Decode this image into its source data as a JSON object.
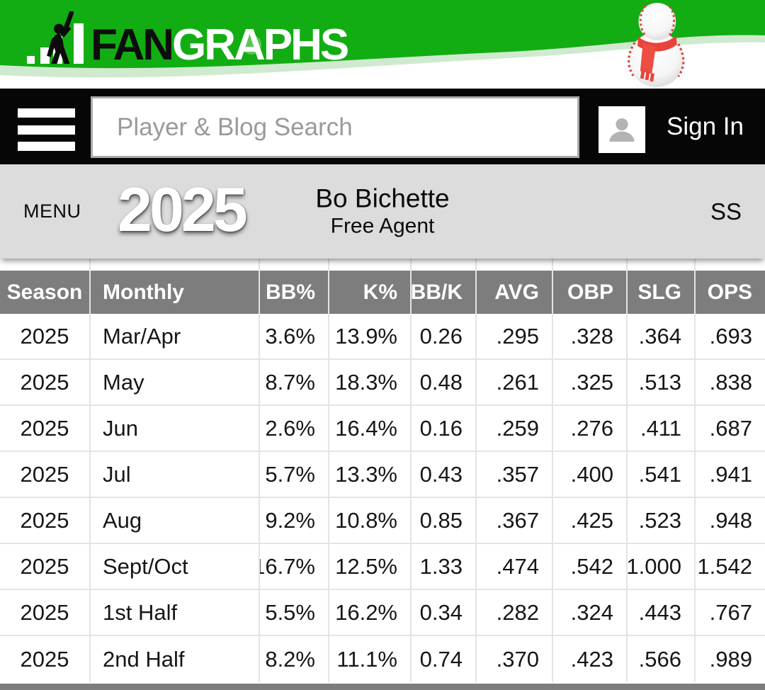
{
  "brand": {
    "logo_fan": "FAN",
    "logo_graphs": "GRAPHS",
    "green": "#12ad12",
    "holiday_icon": "baseball-snowman",
    "scarf_red": "#e8423a"
  },
  "navbar": {
    "search": {
      "placeholder": "Player & Blog Search",
      "value": ""
    },
    "sign_in_label": "Sign In"
  },
  "player_bar": {
    "menu_label": "MENU",
    "year": "2025",
    "name": "Bo Bichette",
    "status": "Free Agent",
    "position": "SS",
    "bar_gray": "#dcdcdc"
  },
  "stats_table": {
    "header_gray": "#7d7d7d",
    "border_gray": "#e4e4e4",
    "columns": [
      "Season",
      "Monthly",
      "BB%",
      "K%",
      "BB/K",
      "AVG",
      "OBP",
      "SLG",
      "OPS"
    ],
    "rows": [
      [
        "2025",
        "Mar/Apr",
        "3.6%",
        "13.9%",
        "0.26",
        ".295",
        ".328",
        ".364",
        ".693"
      ],
      [
        "2025",
        "May",
        "8.7%",
        "18.3%",
        "0.48",
        ".261",
        ".325",
        ".513",
        ".838"
      ],
      [
        "2025",
        "Jun",
        "2.6%",
        "16.4%",
        "0.16",
        ".259",
        ".276",
        ".411",
        ".687"
      ],
      [
        "2025",
        "Jul",
        "5.7%",
        "13.3%",
        "0.43",
        ".357",
        ".400",
        ".541",
        ".941"
      ],
      [
        "2025",
        "Aug",
        "9.2%",
        "10.8%",
        "0.85",
        ".367",
        ".425",
        ".523",
        ".948"
      ],
      [
        "2025",
        "Sept/Oct",
        "16.7%",
        "12.5%",
        "1.33",
        ".474",
        ".542",
        "1.000",
        "1.542"
      ],
      [
        "2025",
        "1st Half",
        "5.5%",
        "16.2%",
        "0.34",
        ".282",
        ".324",
        ".443",
        ".767"
      ],
      [
        "2025",
        "2nd Half",
        "8.2%",
        "11.1%",
        "0.74",
        ".370",
        ".423",
        ".566",
        ".989"
      ]
    ]
  }
}
